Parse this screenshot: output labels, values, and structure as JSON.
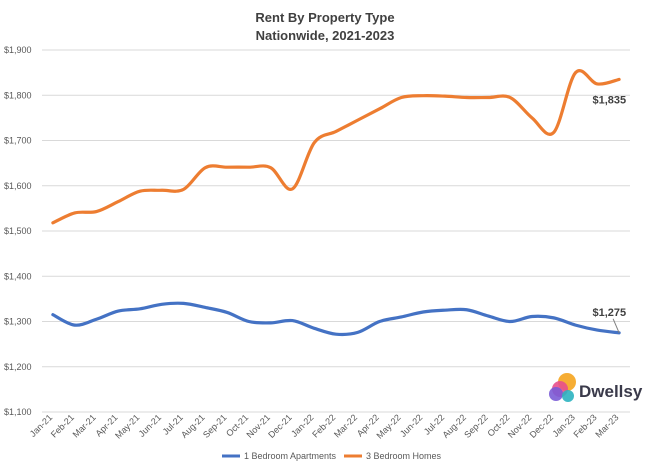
{
  "chart_data": {
    "type": "line",
    "title": "Rent By Property Type",
    "subtitle": "Nationwide, 2021-2023",
    "xlabel": "",
    "ylabel": "",
    "ylim": [
      1100,
      1900
    ],
    "y_ticks": [
      1100,
      1200,
      1300,
      1400,
      1500,
      1600,
      1700,
      1800,
      1900
    ],
    "y_tick_labels": [
      "$1,100",
      "$1,200",
      "$1,300",
      "$1,400",
      "$1,500",
      "$1,600",
      "$1,700",
      "$1,800",
      "$1,900"
    ],
    "categories": [
      "Jan-21",
      "Feb-21",
      "Mar-21",
      "Apr-21",
      "May-21",
      "Jun-21",
      "Jul-21",
      "Aug-21",
      "Sep-21",
      "Oct-21",
      "Nov-21",
      "Dec-21",
      "Jan-22",
      "Feb-22",
      "Mar-22",
      "Apr-22",
      "May-22",
      "Jun-22",
      "Jul-22",
      "Aug-22",
      "Sep-22",
      "Oct-22",
      "Nov-22",
      "Dec-22",
      "Jan-23",
      "Feb-23",
      "Mar-23"
    ],
    "grid": true,
    "legend_position": "bottom-center",
    "series": [
      {
        "name": "1 Bedroom Apartments",
        "color": "#4472C4",
        "values": [
          1315,
          1292,
          1305,
          1323,
          1328,
          1338,
          1340,
          1331,
          1320,
          1300,
          1297,
          1302,
          1285,
          1272,
          1276,
          1300,
          1310,
          1321,
          1325,
          1326,
          1312,
          1300,
          1311,
          1308,
          1292,
          1281,
          1275
        ],
        "end_label": "$1,275"
      },
      {
        "name": "3 Bedroom Homes",
        "color": "#ED7D31",
        "values": [
          1518,
          1540,
          1543,
          1565,
          1588,
          1590,
          1592,
          1640,
          1641,
          1641,
          1640,
          1593,
          1695,
          1720,
          1745,
          1770,
          1795,
          1799,
          1798,
          1795,
          1795,
          1795,
          1750,
          1718,
          1850,
          1825,
          1835
        ],
        "end_label": "$1,835"
      }
    ]
  },
  "brand": {
    "name": "Dwellsy",
    "colors": [
      "#F5A623",
      "#E8508C",
      "#7B5CD6",
      "#2BB3C0"
    ]
  }
}
